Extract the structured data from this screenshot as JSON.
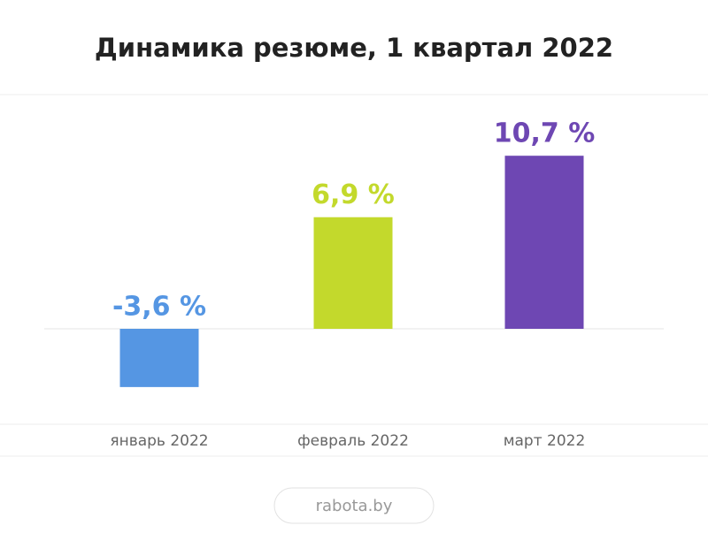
{
  "chart_data": {
    "type": "bar",
    "title": "Динамика резюме, 1 квартал 2022",
    "categories": [
      "январь 2022",
      "февраль 2022",
      "март 2022"
    ],
    "values": [
      -3.6,
      6.9,
      10.7
    ],
    "value_labels": [
      "-3,6 %",
      "6,9 %",
      "10,7 %"
    ],
    "colors": [
      "#5596e3",
      "#c3d92c",
      "#6e47b3"
    ],
    "source": "rabota.by"
  }
}
